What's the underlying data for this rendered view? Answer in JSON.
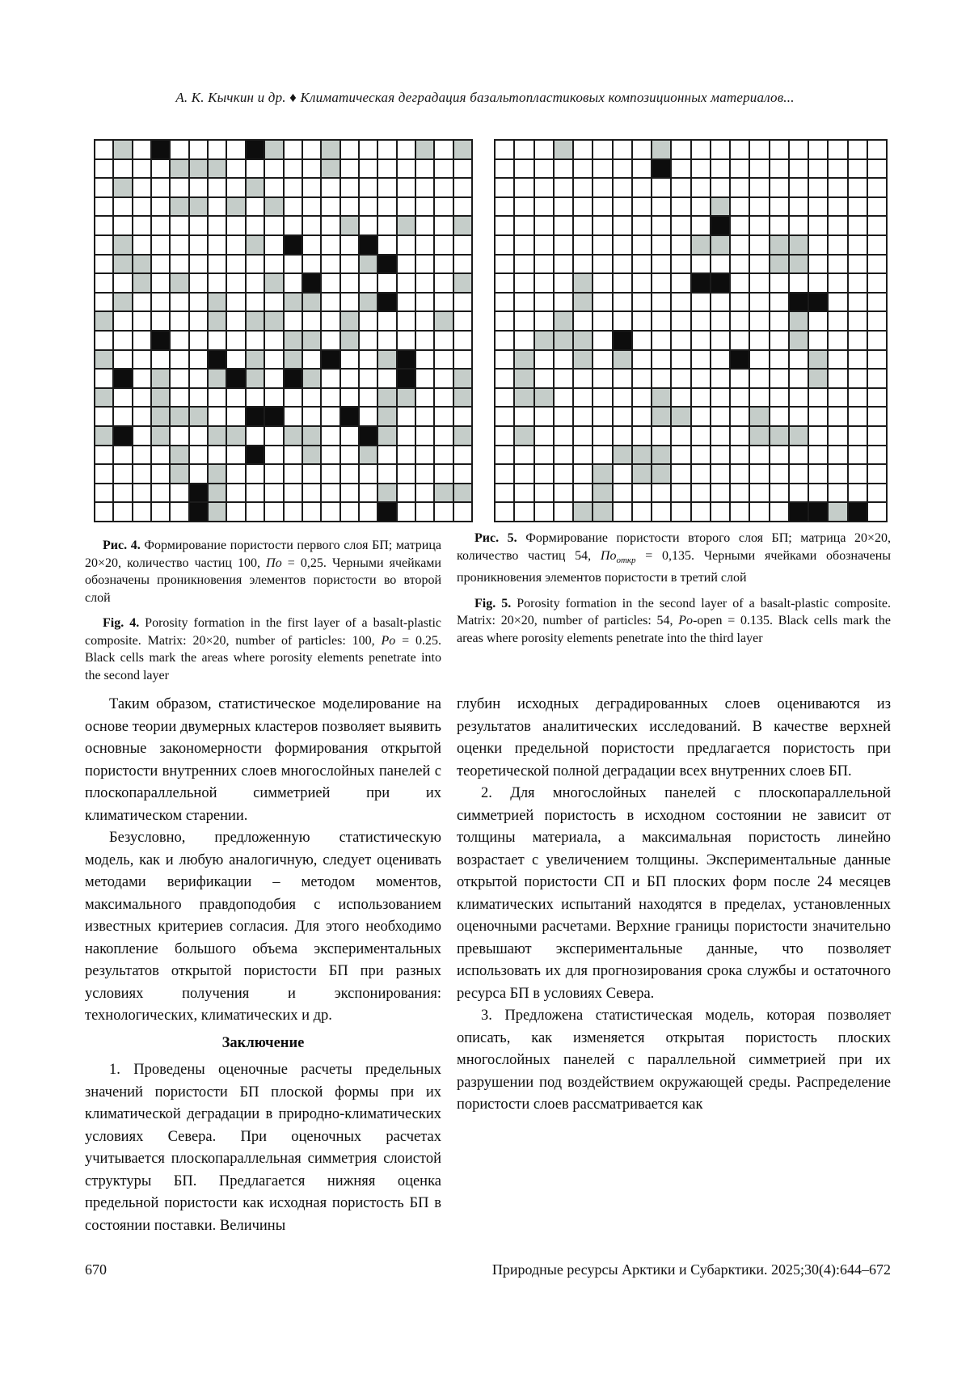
{
  "header": {
    "running_title": "А. К. Кычкин и др. ♦ Климатическая деградация базальтопластиковых композиционных материалов..."
  },
  "legend": {
    "cell_colors": {
      "empty": "#ffffff",
      "porosity_particle": "#c5cdc9",
      "penetration": "#0d0d0d"
    }
  },
  "figures": [
    {
      "id": "fig4",
      "matrix_size": "20×20",
      "particles": 100,
      "matrix": [
        "01020000210010000101",
        "00001110000010000000",
        "01000000100000000000",
        "00001101010000000000",
        "00000000000001001001",
        "01000000102000200000",
        "01100000000000120000",
        "00101000010200000001",
        "01000010001100120000",
        "10000010110001000010",
        "00020000001101000000",
        "10000020101020012000",
        "02010012102100002001",
        "10010000000000011001",
        "00011100220002010000",
        "12010011001100210001",
        "00001000200100100000",
        "00001010000000000000",
        "00000210000000010011",
        "00000210000000020000"
      ],
      "caption_ru": [
        {
          "s": "b",
          "t": "Рис. 4."
        },
        {
          "s": "",
          "t": " Формирование пористости первого слоя БП; матрица 20×20, количество частиц 100, "
        },
        {
          "s": "i",
          "t": "По"
        },
        {
          "s": "",
          "t": " = 0,25. Черными ячейками обозначены проникновения элементов пористости во второй слой"
        }
      ],
      "caption_en": [
        {
          "s": "b",
          "t": "Fig. 4."
        },
        {
          "s": "",
          "t": " Porosity formation in the first layer of a basalt-plastic composite. Matrix: 20×20, number of particles: 100, "
        },
        {
          "s": "i",
          "t": "Po"
        },
        {
          "s": "",
          "t": " = 0.25. Black cells mark the areas where porosity elements penetrate into the second layer"
        }
      ]
    },
    {
      "id": "fig5",
      "matrix_size": "20×20",
      "particles": 54,
      "matrix": [
        "00010000100000000000",
        "00000000200000000000",
        "00000000000000000000",
        "00000000000100000000",
        "00000000000200000000",
        "00000000001100110000",
        "00000000000000110000",
        "00001000002200000000",
        "00001000000000022000",
        "00010000000000010000",
        "00111020000000010000",
        "01001010000020001000",
        "01000000000000001000",
        "01100000100000000000",
        "00000000110001000000",
        "01000000000001110000",
        "00000011100000000000",
        "00000101100000000000",
        "00000100000000000000",
        "00001100000000022120"
      ],
      "caption_ru": [
        {
          "s": "b",
          "t": "Рис. 5."
        },
        {
          "s": "",
          "t": " Формирование пористости второго слоя БП; матрица 20×20, количество частиц 54, "
        },
        {
          "s": "i",
          "t": "По"
        },
        {
          "s": "sub",
          "t": "откр"
        },
        {
          "s": "",
          "t": " = 0,135. Черными ячейками обозначены проникновения элементов пористости в третий слой"
        }
      ],
      "caption_en": [
        {
          "s": "b",
          "t": "Fig. 5."
        },
        {
          "s": "",
          "t": " Porosity formation in the second layer of a basalt-plastic composite. Matrix: 20×20, number of particles: 54, "
        },
        {
          "s": "i",
          "t": "Po"
        },
        {
          "s": "",
          "t": "-open = 0.135. Black cells mark the areas where porosity elements penetrate into the third layer"
        }
      ]
    }
  ],
  "body": {
    "left_column": {
      "para1": "Таким образом, статистическое моделирование на основе теории двумерных кластеров позволяет выявить основные закономерности формирования открытой пористости внутренних слоев многослойных панелей с плоскопараллельной симметрией при их климатическом старении.",
      "para2": "Безусловно, предложенную статистическую модель, как и любую аналогичную, следует оценивать методами верификации – методом моментов, максимального правдоподобия с использованием известных критериев согласия. Для этого необходимо накопление большого объема экспериментальных результатов открытой пористости БП при разных условиях получения и экспонирования: технологических, климатических и др.",
      "heading": "Заключение",
      "para3": "1. Проведены оценочные расчеты предельных значений пористости БП плоской формы при их климатической деградации в природно-климатических условиях Севера. При оценочных расчетах учитывается плоскопараллельная симметрия слоистой структуры БП. Предлагается нижняя оценка предельной пористости как исходная пористость БП в состоянии поставки. Величины"
    },
    "right_column": {
      "para1": "глубин исходных деградированных слоев оцениваются из результатов аналитических исследований. В качестве верхней оценки предельной пористости предлагается пористость при теоретической полной деградации всех внутренних слоев БП.",
      "para2": "2. Для многослойных панелей с плоскопараллельной симметрией пористость в исходном состоянии не зависит от толщины материала, а максимальная пористость линейно возрастает с увеличением толщины. Экспериментальные данные открытой пористости СП и БП плоских форм после 24 месяцев климатических испытаний находятся в пределах, установленных оценочными расчетами. Верхние границы пористости значительно превышают экспериментальные данные, что позволяет использовать их для прогнозирования срока службы и остаточного ресурса БП в условиях Севера.",
      "para3": "3. Предложена статистическая модель, которая позволяет описать, как изменяется открытая пористость плоских многослойных панелей с параллельной симметрией при их разрушении под воздействием окружающей среды. Распределение пористости слоев рассматривается как"
    }
  },
  "footer": {
    "page_number": "670",
    "journal_ref": "Природные ресурсы Арктики и Субарктики. 2025;30(4):644–672"
  }
}
